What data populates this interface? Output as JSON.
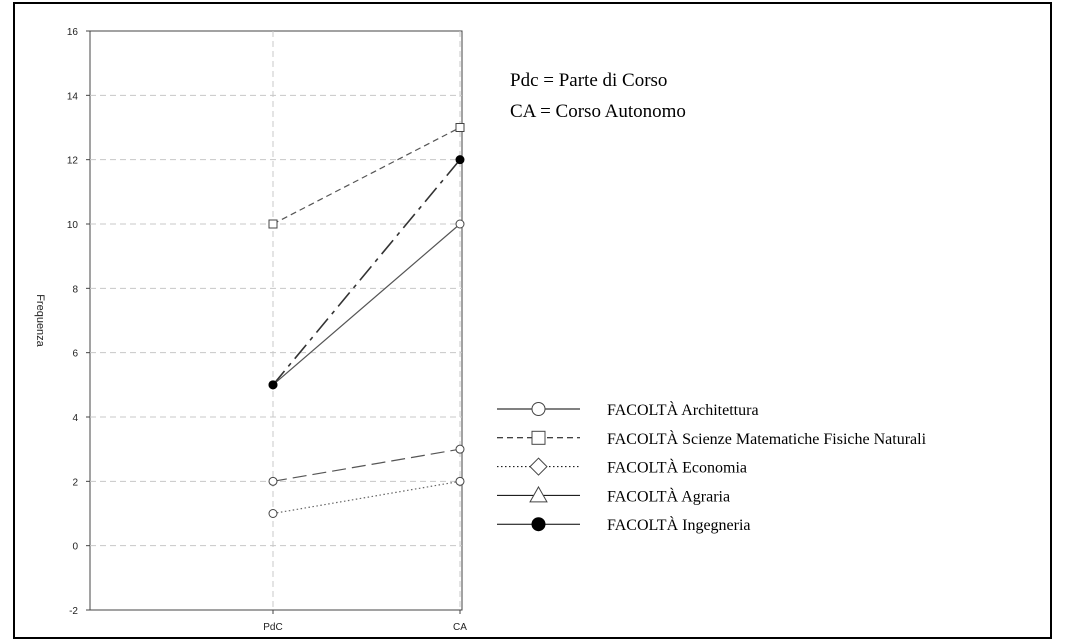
{
  "chart_data": {
    "type": "line",
    "categories": [
      "PdC",
      "CA"
    ],
    "ylabel": "Frequenza",
    "xlabel": "",
    "ylim": [
      -2,
      16
    ],
    "yticks": [
      -2,
      0,
      2,
      4,
      6,
      8,
      10,
      12,
      14,
      16
    ],
    "grid": true,
    "legend_position": "bottom-right",
    "notes": [
      "Pdc = Parte di Corso",
      "CA = Corso Autonomo"
    ],
    "series": [
      {
        "name": "FACOLTÀ  Architettura",
        "values": [
          5,
          10
        ],
        "marker": "circle-open",
        "dash": "solid"
      },
      {
        "name": "FACOLTÀ  Scienze Matematiche Fisiche Naturali",
        "values": [
          10,
          13
        ],
        "marker": "square-open",
        "dash": "dashed"
      },
      {
        "name": "FACOLTÀ  Economia",
        "values": [
          1,
          2
        ],
        "marker": "diamond-open",
        "dash": "dotted"
      },
      {
        "name": "FACOLTÀ  Agraria",
        "values": [
          2,
          3
        ],
        "marker": "triangle-open",
        "dash": "longdash"
      },
      {
        "name": "FACOLTÀ  Ingegneria",
        "values": [
          5,
          12
        ],
        "marker": "circle-filled",
        "dash": "dashdot"
      }
    ]
  }
}
